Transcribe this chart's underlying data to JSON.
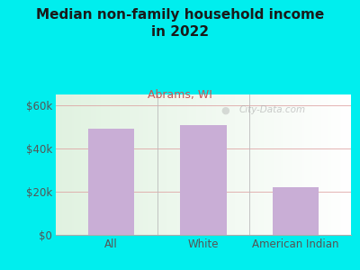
{
  "title": "Median non-family household income\nin 2022",
  "subtitle": "Abrams, WI",
  "categories": [
    "All",
    "White",
    "American Indian"
  ],
  "values": [
    49000,
    51000,
    22000
  ],
  "bar_color": "#c9aed6",
  "ylim": [
    0,
    65000
  ],
  "yticks": [
    0,
    20000,
    40000,
    60000
  ],
  "ytick_labels": [
    "$0",
    "$20k",
    "$40k",
    "$60k"
  ],
  "outer_bg": "#00EEEE",
  "title_color": "#1a1a1a",
  "subtitle_color": "#cc5555",
  "axis_label_color": "#555555",
  "grid_color": "#dda0a0",
  "watermark": "City-Data.com"
}
